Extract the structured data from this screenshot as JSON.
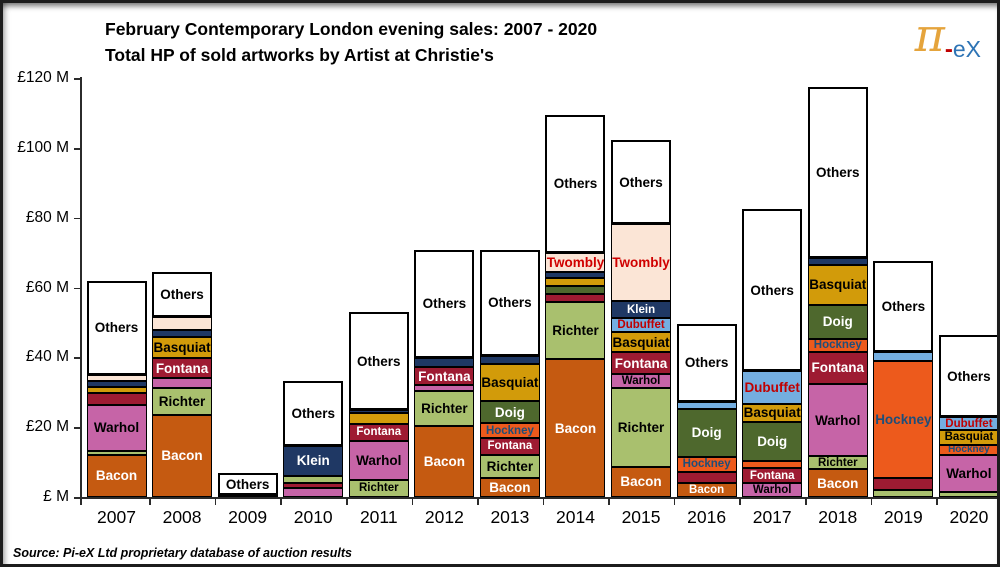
{
  "title": {
    "line1": "February Contemporary London evening sales: 2007 - 2020",
    "line2": "Total HP of sold artworks by Artist at Christie's"
  },
  "logo": {
    "pi": "π",
    "dash": "-",
    "ex": "eX"
  },
  "source": "Source:  Pi-eX Ltd proprietary database of auction results",
  "chart_data": {
    "type": "bar",
    "stacked": true,
    "title": "February Contemporary London evening sales: 2007 - 2020 — Total HP of sold artworks by Artist at Christie's",
    "unit": "GBP millions",
    "ylabel": "£ M",
    "ylim": [
      0,
      120
    ],
    "grid": false,
    "legend": "labels inside segments",
    "yticks": [
      {
        "value": 0,
        "label": "£ M"
      },
      {
        "value": 20,
        "label": "£20 M"
      },
      {
        "value": 40,
        "label": "£40 M"
      },
      {
        "value": 60,
        "label": "£60 M"
      },
      {
        "value": 80,
        "label": "£80 M"
      },
      {
        "value": 100,
        "label": "£100 M"
      },
      {
        "value": 120,
        "label": "£120 M"
      }
    ],
    "categories": [
      "2007",
      "2008",
      "2009",
      "2010",
      "2011",
      "2012",
      "2013",
      "2014",
      "2015",
      "2016",
      "2017",
      "2018",
      "2019",
      "2020"
    ],
    "artists": {
      "Bacon": {
        "color": "#C55A11",
        "text": "#FFFFFF"
      },
      "Richter": {
        "color": "#A9C06E",
        "text": "#000000"
      },
      "Warhol": {
        "color": "#C664A7",
        "text": "#000000"
      },
      "Fontana": {
        "color": "#9E1B32",
        "text": "#FFFFFF"
      },
      "Hockney": {
        "color": "#ED5A1C",
        "text": "#1F4E79"
      },
      "Doig": {
        "color": "#4E682D",
        "text": "#FFFFFF"
      },
      "Basquiat": {
        "color": "#D29B0A",
        "text": "#000000"
      },
      "Dubuffet": {
        "color": "#74AEE0",
        "text": "#C00000"
      },
      "Klein": {
        "color": "#1F3864",
        "text": "#FFFFFF"
      },
      "Twombly": {
        "color": "#FBE5D6",
        "text": "#D00000"
      },
      "Others": {
        "color": "#FFFFFF",
        "text": "#000000"
      }
    },
    "bars": [
      {
        "year": "2007",
        "total": 62.0,
        "segments": [
          {
            "artist": "Bacon",
            "value": 12.1,
            "label": true
          },
          {
            "artist": "Richter",
            "value": 1.0,
            "label": false
          },
          {
            "artist": "Warhol",
            "value": 13.4,
            "label": true
          },
          {
            "artist": "Fontana",
            "value": 3.4,
            "label": false
          },
          {
            "artist": "Basquiat",
            "value": 1.5,
            "label": false
          },
          {
            "artist": "Klein",
            "value": 1.9,
            "label": false
          },
          {
            "artist": "Twombly",
            "value": 1.6,
            "label": false
          },
          {
            "artist": "Others",
            "value": 27.1,
            "label": true
          }
        ]
      },
      {
        "year": "2008",
        "total": 64.4,
        "segments": [
          {
            "artist": "Bacon",
            "value": 23.6,
            "label": true
          },
          {
            "artist": "Richter",
            "value": 7.5,
            "label": true
          },
          {
            "artist": "Warhol",
            "value": 2.9,
            "label": false
          },
          {
            "artist": "Fontana",
            "value": 5.9,
            "label": true
          },
          {
            "artist": "Basquiat",
            "value": 6.0,
            "label": true
          },
          {
            "artist": "Klein",
            "value": 2.0,
            "label": false
          },
          {
            "artist": "Twombly",
            "value": 3.6,
            "label": false
          },
          {
            "artist": "Others",
            "value": 12.9,
            "label": true
          }
        ]
      },
      {
        "year": "2009",
        "total": 6.8,
        "segments": [
          {
            "artist": "Klein",
            "value": 0.5,
            "label": false
          },
          {
            "artist": "Others",
            "value": 6.3,
            "label": true
          }
        ]
      },
      {
        "year": "2010",
        "total": 33.3,
        "segments": [
          {
            "artist": "Warhol",
            "value": 2.7,
            "label": false
          },
          {
            "artist": "Fontana",
            "value": 1.2,
            "label": false
          },
          {
            "artist": "Richter",
            "value": 2.1,
            "label": false
          },
          {
            "artist": "Klein",
            "value": 8.7,
            "label": true
          },
          {
            "artist": "Others",
            "value": 18.6,
            "label": true
          }
        ]
      },
      {
        "year": "2011",
        "total": 53.0,
        "segments": [
          {
            "artist": "Richter",
            "value": 4.9,
            "label": true
          },
          {
            "artist": "Warhol",
            "value": 11.2,
            "label": true
          },
          {
            "artist": "Fontana",
            "value": 4.8,
            "label": true
          },
          {
            "artist": "Basquiat",
            "value": 3.1,
            "label": false
          },
          {
            "artist": "Klein",
            "value": 0.9,
            "label": false
          },
          {
            "artist": "Others",
            "value": 28.1,
            "label": true
          }
        ]
      },
      {
        "year": "2012",
        "total": 70.9,
        "segments": [
          {
            "artist": "Bacon",
            "value": 20.3,
            "label": true
          },
          {
            "artist": "Richter",
            "value": 10.1,
            "label": true
          },
          {
            "artist": "Warhol",
            "value": 1.6,
            "label": false
          },
          {
            "artist": "Fontana",
            "value": 5.3,
            "label": true
          },
          {
            "artist": "Klein",
            "value": 2.5,
            "label": false
          },
          {
            "artist": "Others",
            "value": 31.1,
            "label": true
          }
        ]
      },
      {
        "year": "2013",
        "total": 70.7,
        "segments": [
          {
            "artist": "Bacon",
            "value": 5.4,
            "label": true
          },
          {
            "artist": "Richter",
            "value": 6.7,
            "label": true
          },
          {
            "artist": "Fontana",
            "value": 4.8,
            "label": true
          },
          {
            "artist": "Hockney",
            "value": 4.3,
            "label": true
          },
          {
            "artist": "Doig",
            "value": 6.3,
            "label": true
          },
          {
            "artist": "Basquiat",
            "value": 10.6,
            "label": true
          },
          {
            "artist": "Klein",
            "value": 2.4,
            "label": false
          },
          {
            "artist": "Others",
            "value": 30.2,
            "label": true
          }
        ]
      },
      {
        "year": "2014",
        "total": 109.6,
        "segments": [
          {
            "artist": "Bacon",
            "value": 39.5,
            "label": true
          },
          {
            "artist": "Richter",
            "value": 16.4,
            "label": true
          },
          {
            "artist": "Fontana",
            "value": 2.4,
            "label": false
          },
          {
            "artist": "Doig",
            "value": 2.2,
            "label": false
          },
          {
            "artist": "Basquiat",
            "value": 2.2,
            "label": false
          },
          {
            "artist": "Klein",
            "value": 1.9,
            "label": false
          },
          {
            "artist": "Twombly",
            "value": 5.3,
            "label": true
          },
          {
            "artist": "Others",
            "value": 39.7,
            "label": true
          }
        ]
      },
      {
        "year": "2015",
        "total": 102.3,
        "segments": [
          {
            "artist": "Bacon",
            "value": 8.7,
            "label": true
          },
          {
            "artist": "Richter",
            "value": 22.6,
            "label": true
          },
          {
            "artist": "Warhol",
            "value": 3.9,
            "label": true
          },
          {
            "artist": "Fontana",
            "value": 6.3,
            "label": true
          },
          {
            "artist": "Basquiat",
            "value": 5.7,
            "label": true
          },
          {
            "artist": "Dubuffet",
            "value": 4.1,
            "label": true
          },
          {
            "artist": "Klein",
            "value": 4.8,
            "label": true
          },
          {
            "artist": "Twombly",
            "value": 22.1,
            "label": true
          },
          {
            "artist": "Others",
            "value": 24.1,
            "label": true
          }
        ]
      },
      {
        "year": "2016",
        "total": 49.6,
        "segments": [
          {
            "artist": "Bacon",
            "value": 3.9,
            "label": true
          },
          {
            "artist": "Fontana",
            "value": 3.4,
            "label": false
          },
          {
            "artist": "Hockney",
            "value": 4.3,
            "label": true
          },
          {
            "artist": "Doig",
            "value": 13.5,
            "label": true
          },
          {
            "artist": "Dubuffet",
            "value": 2.1,
            "label": false
          },
          {
            "artist": "Others",
            "value": 22.4,
            "label": true
          }
        ]
      },
      {
        "year": "2017",
        "total": 82.4,
        "segments": [
          {
            "artist": "Warhol",
            "value": 3.9,
            "label": true
          },
          {
            "artist": "Fontana",
            "value": 4.3,
            "label": true
          },
          {
            "artist": "Hockney",
            "value": 2.0,
            "label": false
          },
          {
            "artist": "Doig",
            "value": 11.3,
            "label": true
          },
          {
            "artist": "Basquiat",
            "value": 5.2,
            "label": true
          },
          {
            "artist": "Dubuffet",
            "value": 9.5,
            "label": true
          },
          {
            "artist": "Others",
            "value": 46.2,
            "label": true
          }
        ]
      },
      {
        "year": "2018",
        "total": 117.6,
        "segments": [
          {
            "artist": "Bacon",
            "value": 7.9,
            "label": true
          },
          {
            "artist": "Richter",
            "value": 3.8,
            "label": true
          },
          {
            "artist": "Warhol",
            "value": 20.7,
            "label": true
          },
          {
            "artist": "Fontana",
            "value": 9.2,
            "label": true
          },
          {
            "artist": "Hockney",
            "value": 3.8,
            "label": true
          },
          {
            "artist": "Doig",
            "value": 9.6,
            "label": true
          },
          {
            "artist": "Basquiat",
            "value": 11.6,
            "label": true
          },
          {
            "artist": "Klein",
            "value": 1.9,
            "label": false
          },
          {
            "artist": "Others",
            "value": 49.1,
            "label": true
          }
        ]
      },
      {
        "year": "2019",
        "total": 67.7,
        "segments": [
          {
            "artist": "Richter",
            "value": 2.0,
            "label": false
          },
          {
            "artist": "Fontana",
            "value": 3.4,
            "label": false
          },
          {
            "artist": "Hockney",
            "value": 33.7,
            "label": true
          },
          {
            "artist": "Dubuffet",
            "value": 2.4,
            "label": false
          },
          {
            "artist": "Others",
            "value": 26.2,
            "label": true
          }
        ]
      },
      {
        "year": "2020",
        "total": 46.3,
        "segments": [
          {
            "artist": "Richter",
            "value": 1.4,
            "label": false
          },
          {
            "artist": "Warhol",
            "value": 10.7,
            "label": true
          },
          {
            "artist": "Hockney",
            "value": 2.9,
            "label": true
          },
          {
            "artist": "Basquiat",
            "value": 4.1,
            "label": true
          },
          {
            "artist": "Dubuffet",
            "value": 3.9,
            "label": true
          },
          {
            "artist": "Others",
            "value": 23.3,
            "label": true
          }
        ]
      }
    ]
  }
}
